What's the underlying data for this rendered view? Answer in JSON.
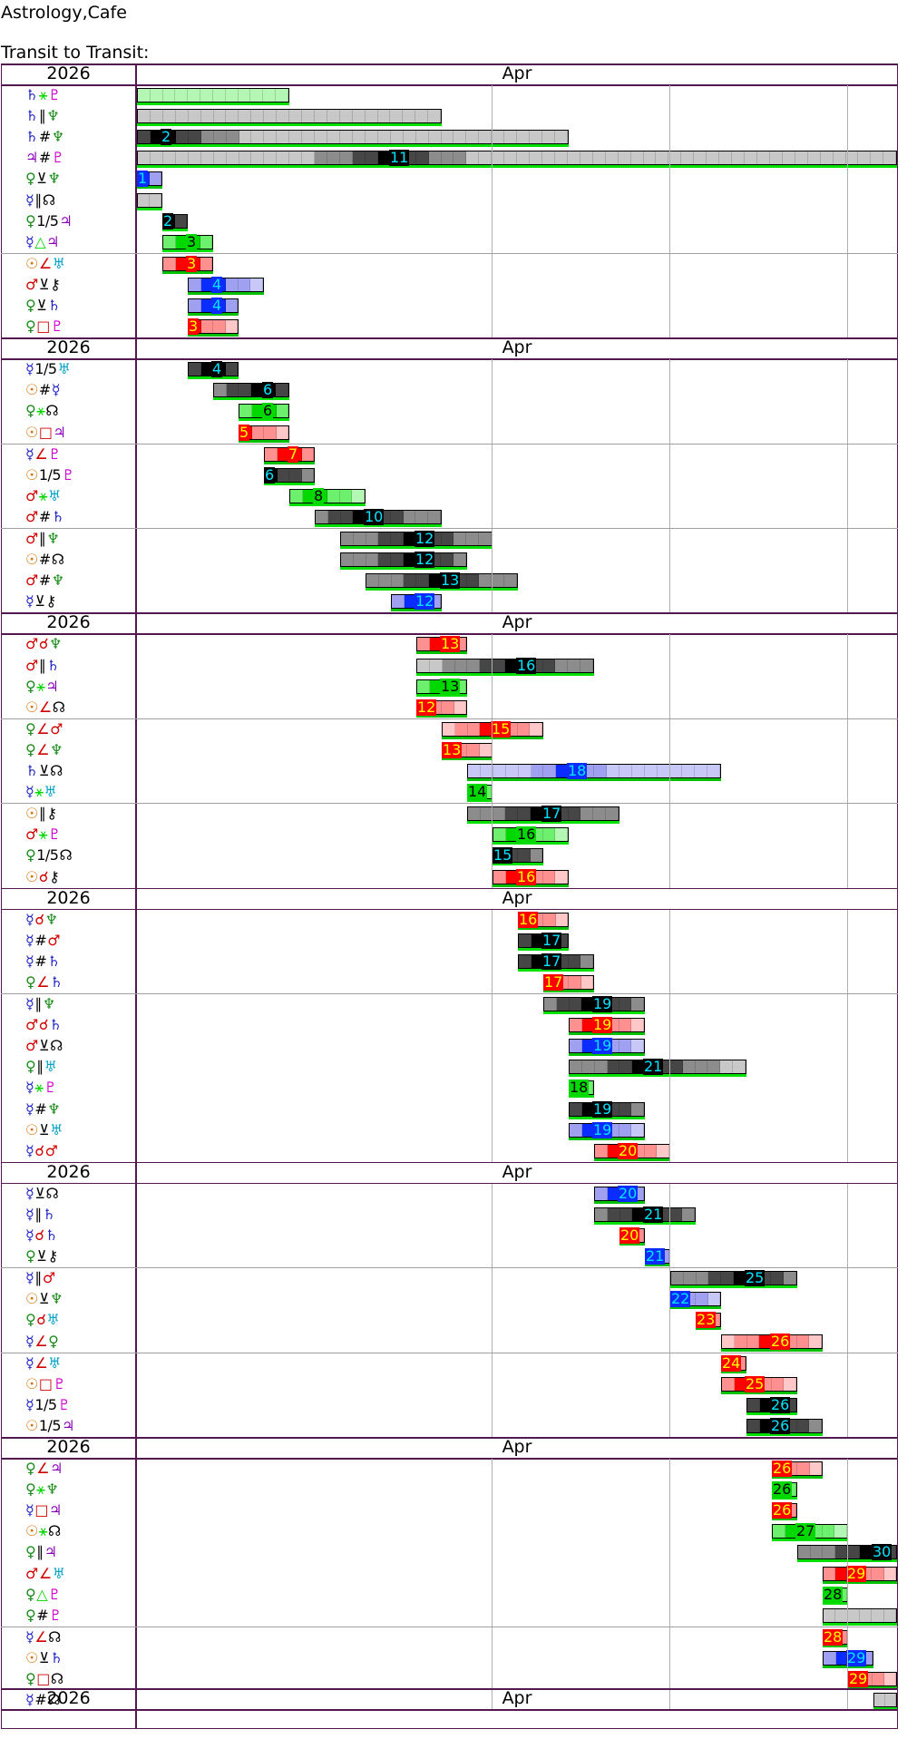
{
  "app_title": "Astrology,Cafe",
  "subtitle": "Transit to Transit:",
  "year": "2026",
  "month": "Apr",
  "groups": [
    {
      "rows": [
        {
          "p1": "♄",
          "a": "⚹",
          "p2": "♇",
          "type": "sextile",
          "start": 1,
          "end": 7,
          "peak": null,
          "label": null
        },
        {
          "p1": "♄",
          "a": "∥",
          "p2": "♆",
          "type": "gray",
          "start": 1,
          "end": 13,
          "peak": null,
          "label": null
        },
        {
          "p1": "♄",
          "a": "#",
          "p2": "♆",
          "type": "gray",
          "start": 1,
          "end": 18,
          "peak": 2,
          "label": "2"
        },
        {
          "p1": "♃",
          "a": "#",
          "p2": "♇",
          "type": "gray",
          "start": 1,
          "end": 31,
          "peak": 11,
          "label": "11"
        },
        {
          "p1": "♀",
          "a": "⊻",
          "p2": "♆",
          "type": "blue",
          "start": 1,
          "end": 2,
          "peak": 1,
          "label": "1"
        },
        {
          "p1": "☿",
          "a": "∥",
          "p2": "☊",
          "type": "gray",
          "start": 1,
          "end": 2,
          "peak": null,
          "label": null
        },
        {
          "p1": "♀",
          "a": "1/5",
          "p2": "♃",
          "type": "gray",
          "start": 2,
          "end": 3,
          "peak": 2,
          "label": "2"
        },
        {
          "p1": "☿",
          "a": "△",
          "p2": "♃",
          "type": "sextile",
          "start": 2,
          "end": 4,
          "peak": 3,
          "label": "3"
        }
      ]
    },
    {
      "rows": [
        {
          "p1": "☉",
          "a": "∠",
          "p2": "♅",
          "type": "red",
          "start": 2,
          "end": 4,
          "peak": 3,
          "label": "3"
        },
        {
          "p1": "♂",
          "a": "⊻",
          "p2": "⚷",
          "type": "blue",
          "start": 3,
          "end": 6,
          "peak": 4,
          "label": "4"
        },
        {
          "p1": "♀",
          "a": "⊻",
          "p2": "♄",
          "type": "blue",
          "start": 3,
          "end": 5,
          "peak": 4,
          "label": "4"
        },
        {
          "p1": "♀",
          "a": "□",
          "p2": "♇",
          "type": "red",
          "start": 3,
          "end": 5,
          "peak": 3,
          "label": "3"
        }
      ]
    },
    {
      "rows": [
        {
          "p1": "☿",
          "a": "1/5",
          "p2": "♅",
          "type": "gray",
          "start": 3,
          "end": 5,
          "peak": 4,
          "label": "4"
        },
        {
          "p1": "☉",
          "a": "#",
          "p2": "☿",
          "type": "gray",
          "start": 4,
          "end": 7,
          "peak": 6,
          "label": "6"
        },
        {
          "p1": "♀",
          "a": "⚹",
          "p2": "☊",
          "type": "sextile",
          "start": 5,
          "end": 7,
          "peak": 6,
          "label": "6"
        },
        {
          "p1": "☉",
          "a": "□",
          "p2": "♃",
          "type": "red",
          "start": 5,
          "end": 7,
          "peak": 5,
          "label": "5"
        }
      ]
    },
    {
      "rows": [
        {
          "p1": "☿",
          "a": "∠",
          "p2": "♇",
          "type": "red",
          "start": 6,
          "end": 8,
          "peak": 7,
          "label": "7"
        },
        {
          "p1": "☉",
          "a": "1/5",
          "p2": "♇",
          "type": "gray",
          "start": 6,
          "end": 8,
          "peak": 6,
          "label": "6"
        },
        {
          "p1": "♂",
          "a": "⚹",
          "p2": "♅",
          "type": "sextile",
          "start": 7,
          "end": 10,
          "peak": 8,
          "label": "8"
        },
        {
          "p1": "♂",
          "a": "#",
          "p2": "♄",
          "type": "gray",
          "start": 8,
          "end": 13,
          "peak": 10,
          "label": "10"
        }
      ]
    },
    {
      "rows": [
        {
          "p1": "♂",
          "a": "∥",
          "p2": "♆",
          "type": "gray",
          "start": 9,
          "end": 15,
          "peak": 12,
          "label": "12"
        },
        {
          "p1": "☉",
          "a": "#",
          "p2": "☊",
          "type": "gray",
          "start": 9,
          "end": 14,
          "peak": 12,
          "label": "12"
        },
        {
          "p1": "♂",
          "a": "#",
          "p2": "♆",
          "type": "gray",
          "start": 10,
          "end": 16,
          "peak": 13,
          "label": "13"
        },
        {
          "p1": "☿",
          "a": "⊻",
          "p2": "⚷",
          "type": "blue",
          "start": 11,
          "end": 13,
          "peak": 12,
          "label": "12"
        }
      ]
    },
    {
      "rows": [
        {
          "p1": "♂",
          "a": "☌",
          "p2": "♆",
          "type": "red",
          "start": 12,
          "end": 14,
          "peak": 13,
          "label": "13"
        },
        {
          "p1": "♂",
          "a": "∥",
          "p2": "♄",
          "type": "gray",
          "start": 12,
          "end": 19,
          "peak": 16,
          "label": "16"
        },
        {
          "p1": "♀",
          "a": "⚹",
          "p2": "♃",
          "type": "sextile",
          "start": 12,
          "end": 14,
          "peak": 13,
          "label": "13"
        },
        {
          "p1": "☉",
          "a": "∠",
          "p2": "☊",
          "type": "red",
          "start": 12,
          "end": 14,
          "peak": 12,
          "label": "12"
        }
      ]
    },
    {
      "rows": [
        {
          "p1": "♀",
          "a": "∠",
          "p2": "♂",
          "type": "red",
          "start": 13,
          "end": 17,
          "peak": 15,
          "label": "15"
        },
        {
          "p1": "♀",
          "a": "∠",
          "p2": "♆",
          "type": "red",
          "start": 13,
          "end": 15,
          "peak": 13,
          "label": "13"
        },
        {
          "p1": "♄",
          "a": "⊻",
          "p2": "☊",
          "type": "blue",
          "start": 14,
          "end": 24,
          "peak": 18,
          "label": "18"
        },
        {
          "p1": "☿",
          "a": "⚹",
          "p2": "♅",
          "type": "sextile",
          "start": 14,
          "end": 15,
          "peak": 14,
          "label": "14"
        }
      ]
    },
    {
      "rows": [
        {
          "p1": "☉",
          "a": "∥",
          "p2": "⚷",
          "type": "gray",
          "start": 14,
          "end": 20,
          "peak": 17,
          "label": "17"
        },
        {
          "p1": "♂",
          "a": "⚹",
          "p2": "♇",
          "type": "sextile",
          "start": 15,
          "end": 18,
          "peak": 16,
          "label": "16"
        },
        {
          "p1": "♀",
          "a": "1/5",
          "p2": "☊",
          "type": "gray",
          "start": 15,
          "end": 17,
          "peak": 15,
          "label": "15"
        },
        {
          "p1": "☉",
          "a": "☌",
          "p2": "⚷",
          "type": "red",
          "start": 15,
          "end": 18,
          "peak": 16,
          "label": "16"
        }
      ]
    },
    {
      "rows": [
        {
          "p1": "☿",
          "a": "☌",
          "p2": "♆",
          "type": "red",
          "start": 16,
          "end": 18,
          "peak": 16,
          "label": "16"
        },
        {
          "p1": "☿",
          "a": "#",
          "p2": "♂",
          "type": "gray",
          "start": 16,
          "end": 18,
          "peak": 17,
          "label": "17"
        },
        {
          "p1": "☿",
          "a": "#",
          "p2": "♄",
          "type": "gray",
          "start": 16,
          "end": 19,
          "peak": 17,
          "label": "17"
        },
        {
          "p1": "♀",
          "a": "∠",
          "p2": "♄",
          "type": "red",
          "start": 17,
          "end": 19,
          "peak": 17,
          "label": "17"
        }
      ]
    },
    {
      "rows": [
        {
          "p1": "☿",
          "a": "∥",
          "p2": "♆",
          "type": "gray",
          "start": 17,
          "end": 21,
          "peak": 19,
          "label": "19"
        },
        {
          "p1": "♂",
          "a": "☌",
          "p2": "♄",
          "type": "red",
          "start": 18,
          "end": 21,
          "peak": 19,
          "label": "19"
        },
        {
          "p1": "♂",
          "a": "⊻",
          "p2": "☊",
          "type": "blue",
          "start": 18,
          "end": 21,
          "peak": 19,
          "label": "19"
        },
        {
          "p1": "♀",
          "a": "∥",
          "p2": "♅",
          "type": "gray",
          "start": 18,
          "end": 25,
          "peak": 21,
          "label": "21"
        },
        {
          "p1": "☿",
          "a": "⚹",
          "p2": "♇",
          "type": "sextile",
          "start": 18,
          "end": 19,
          "peak": 18,
          "label": "18"
        },
        {
          "p1": "☿",
          "a": "#",
          "p2": "♆",
          "type": "gray",
          "start": 18,
          "end": 21,
          "peak": 19,
          "label": "19"
        },
        {
          "p1": "☉",
          "a": "⊻",
          "p2": "♅",
          "type": "blue",
          "start": 18,
          "end": 21,
          "peak": 19,
          "label": "19"
        },
        {
          "p1": "☿",
          "a": "☌",
          "p2": "♂",
          "type": "red",
          "start": 19,
          "end": 22,
          "peak": 20,
          "label": "20"
        }
      ]
    },
    {
      "rows": [
        {
          "p1": "☿",
          "a": "⊻",
          "p2": "☊",
          "type": "blue",
          "start": 19,
          "end": 21,
          "peak": 20,
          "label": "20"
        },
        {
          "p1": "☿",
          "a": "∥",
          "p2": "♄",
          "type": "gray",
          "start": 19,
          "end": 23,
          "peak": 21,
          "label": "21"
        },
        {
          "p1": "☿",
          "a": "☌",
          "p2": "♄",
          "type": "red",
          "start": 20,
          "end": 21,
          "peak": 20,
          "label": "20"
        },
        {
          "p1": "♀",
          "a": "⊻",
          "p2": "⚷",
          "type": "blue",
          "start": 21,
          "end": 22,
          "peak": 21,
          "label": "21"
        }
      ]
    },
    {
      "rows": [
        {
          "p1": "☿",
          "a": "∥",
          "p2": "♂",
          "type": "gray",
          "start": 22,
          "end": 27,
          "peak": 25,
          "label": "25"
        },
        {
          "p1": "☉",
          "a": "⊻",
          "p2": "♆",
          "type": "blue",
          "start": 22,
          "end": 24,
          "peak": 22,
          "label": "22"
        },
        {
          "p1": "♀",
          "a": "☌",
          "p2": "♅",
          "type": "red",
          "start": 23,
          "end": 24,
          "peak": 23,
          "label": "23"
        },
        {
          "p1": "☿",
          "a": "∠",
          "p2": "♀",
          "type": "red",
          "start": 24,
          "end": 28,
          "peak": 26,
          "label": "26"
        }
      ]
    },
    {
      "rows": [
        {
          "p1": "☿",
          "a": "∠",
          "p2": "♅",
          "type": "red",
          "start": 24,
          "end": 25,
          "peak": 24,
          "label": "24"
        },
        {
          "p1": "☉",
          "a": "□",
          "p2": "♇",
          "type": "red",
          "start": 24,
          "end": 27,
          "peak": 25,
          "label": "25"
        },
        {
          "p1": "☿",
          "a": "1/5",
          "p2": "♇",
          "type": "gray",
          "start": 25,
          "end": 27,
          "peak": 26,
          "label": "26"
        },
        {
          "p1": "☉",
          "a": "1/5",
          "p2": "♃",
          "type": "gray",
          "start": 25,
          "end": 28,
          "peak": 26,
          "label": "26"
        }
      ]
    },
    {
      "rows": [
        {
          "p1": "♀",
          "a": "∠",
          "p2": "♃",
          "type": "red",
          "start": 26,
          "end": 28,
          "peak": 26,
          "label": "26"
        },
        {
          "p1": "♀",
          "a": "⚹",
          "p2": "♆",
          "type": "sextile",
          "start": 26,
          "end": 27,
          "peak": 26,
          "label": "26"
        },
        {
          "p1": "☿",
          "a": "□",
          "p2": "♃",
          "type": "red",
          "start": 26,
          "end": 27,
          "peak": 26,
          "label": "26"
        },
        {
          "p1": "☉",
          "a": "⚹",
          "p2": "☊",
          "type": "sextile",
          "start": 26,
          "end": 29,
          "peak": 27,
          "label": "27"
        },
        {
          "p1": "♀",
          "a": "∥",
          "p2": "♃",
          "type": "gray",
          "start": 27,
          "end": 31,
          "peak": 30,
          "label": "30"
        },
        {
          "p1": "♂",
          "a": "∠",
          "p2": "♅",
          "type": "red",
          "start": 28,
          "end": 31,
          "peak": 29,
          "label": "29"
        },
        {
          "p1": "♀",
          "a": "△",
          "p2": "♇",
          "type": "sextile",
          "start": 28,
          "end": 29,
          "peak": 28,
          "label": "28"
        },
        {
          "p1": "♀",
          "a": "#",
          "p2": "♇",
          "type": "gray",
          "start": 28,
          "end": 31,
          "peak": null,
          "label": null
        }
      ]
    },
    {
      "rows": [
        {
          "p1": "☿",
          "a": "∠",
          "p2": "☊",
          "type": "red",
          "start": 28,
          "end": 29,
          "peak": 28,
          "label": "28"
        },
        {
          "p1": "☉",
          "a": "⊻",
          "p2": "♄",
          "type": "blue",
          "start": 28,
          "end": 30,
          "peak": 29,
          "label": "29"
        },
        {
          "p1": "♀",
          "a": "□",
          "p2": "☊",
          "type": "red",
          "start": 29,
          "end": 31,
          "peak": 29,
          "label": "29"
        },
        {
          "p1": "☿",
          "a": "#",
          "p2": "☊",
          "type": "gray",
          "start": 30,
          "end": 31,
          "peak": null,
          "label": null
        }
      ]
    }
  ],
  "colors": {
    "frame": "#52184f",
    "sun": "#d4750c",
    "moon": "#000000",
    "mercury": "#1e22c8",
    "venus": "#1a8a1a",
    "mars": "#d10000",
    "jupiter": "#8a00b8",
    "saturn": "#1e22c8",
    "uranus": "#0aa4c8",
    "neptune": "#1a8a1a",
    "pluto": "#d000d0",
    "node": "#000000",
    "chiron": "#000000",
    "gray_light": "#c8c8c8",
    "gray_mid": "#8c8c8c",
    "gray_dark": "#464646",
    "green": "#00d800",
    "red_peak": "#ff0000",
    "red_light": "#ff9090",
    "blue_peak": "#0a2cff",
    "blue_light": "#a0a0f0",
    "label_cyan": "#00e5ff",
    "label_yellow": "#ffff00",
    "underline_green": "#00e000"
  }
}
